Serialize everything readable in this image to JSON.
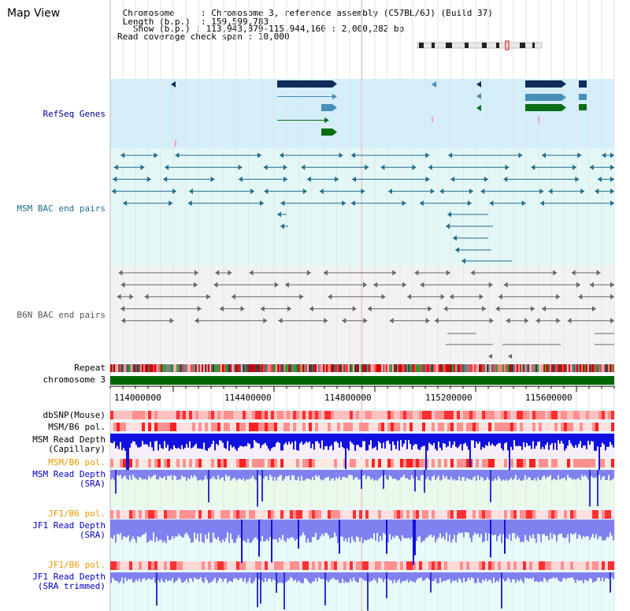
{
  "title": "Map View",
  "header": {
    "chromosome_key": "Chromosome",
    "chromosome_val": "Chromosome 3, reference assembly (C57BL/6J) (Build 37)",
    "length_key": "Length (b.p.)",
    "length_val": "159,599,783",
    "show_key": "Show (b.p.)",
    "show_val": "113,943,879-115,944,160 : 2,000,282 bp",
    "coverage_key": "Read coverage check span",
    "coverage_val": "10,000"
  },
  "tracks": {
    "refseq": "RefSeq Genes",
    "msm_bac": "MSM BAC end pairs",
    "b6n_bac": "B6N BAC end pairs",
    "repeat": "Repeat",
    "chromosome": "chromosome 3",
    "dbsnp": "dbSNP(Mouse)",
    "msm_b6_pol_1": "MSM/B6 pol.",
    "msm_read_depth_cap_1": "MSM Read Depth",
    "msm_read_depth_cap_2": "(Capillary)",
    "msm_b6_pol_2": "MSM/B6 pol.",
    "msm_read_depth_sra_1": "MSM Read Depth",
    "msm_read_depth_sra_2": "(SRA)",
    "jf1_b6_pol_1": "JF1/B6 pol.",
    "jf1_read_depth_1": "JF1 Read Depth",
    "jf1_read_depth_2": "(SRA)",
    "jf1_b6_pol_2": "JF1/B6 pol.",
    "jf1_read_depth_trim_1": "JF1 Read Depth",
    "jf1_read_depth_trim_2": "(SRA trimmed)"
  },
  "axis": {
    "ticks": [
      "114000000",
      "114400000",
      "114800000",
      "115200000",
      "115600000"
    ]
  },
  "colors": {
    "refseq_bg": "#d4eefa",
    "bac_bg": "#e4f7f7",
    "b6n_bg": "#f2f2f4",
    "gene_navy": "#0d2c5a",
    "gene_steel": "#4a8fba",
    "gene_green": "#0a6e14",
    "bac_teal": "#1e6e8c",
    "bac_gray": "#666666",
    "chromosome_green": "#006400",
    "depth_blue": "#1010e0",
    "depth_light": "#8080f0"
  }
}
